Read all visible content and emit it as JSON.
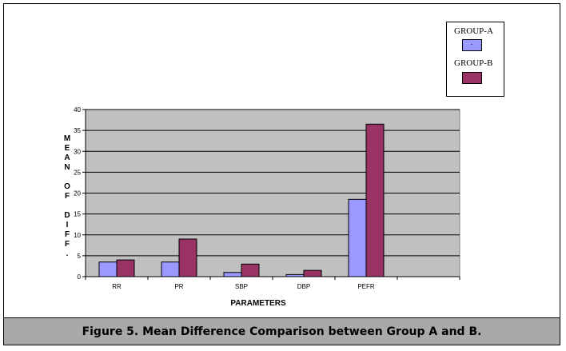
{
  "chart_data": {
    "type": "bar",
    "categories": [
      "RR",
      "PR",
      "SBP",
      "DBP",
      "PEFR",
      ""
    ],
    "series": [
      {
        "name": "GROUP-A",
        "values": [
          3.5,
          3.5,
          1,
          0.5,
          18.5,
          null
        ],
        "color": "#9999ff"
      },
      {
        "name": "GROUP-B",
        "values": [
          4,
          9,
          3,
          1.5,
          36.5,
          null
        ],
        "color": "#993366"
      }
    ],
    "xlabel": "PARAMETERS",
    "ylabel_lines": [
      "M",
      "E",
      "A",
      "N",
      "",
      "O",
      "F",
      "",
      "D",
      "I",
      "F",
      "F",
      "."
    ],
    "ylim": [
      0,
      40
    ],
    "yticks": [
      0,
      5,
      10,
      15,
      20,
      25,
      30,
      35,
      40
    ],
    "grid": true,
    "legend_position": "top-right",
    "plot_background": "#c0c0c0"
  },
  "legend": {
    "a_label": "GROUP-A",
    "a_mark": ".",
    "b_label": "GROUP-B"
  },
  "caption": "Figure 5. Mean Difference Comparison between Group A and B."
}
